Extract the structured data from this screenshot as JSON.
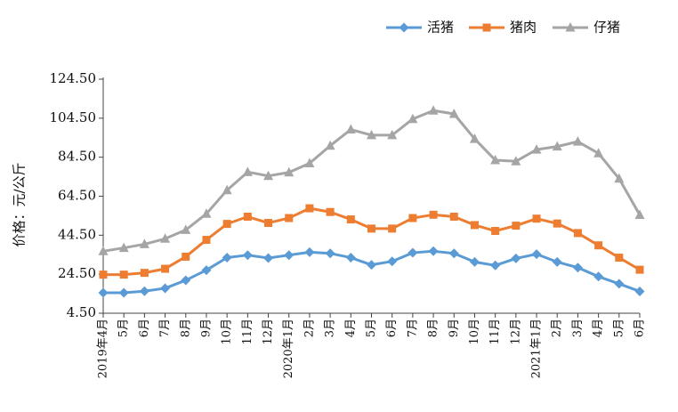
{
  "chart_data": {
    "type": "line",
    "ylabel": "价格：元/公斤",
    "ylim": [
      4.5,
      124.5
    ],
    "yticks": [
      "124.50",
      "104.50",
      "84.50",
      "64.50",
      "44.50",
      "24.50",
      "4.50"
    ],
    "categories": [
      "2019年4月",
      "5月",
      "6月",
      "7月",
      "8月",
      "9月",
      "10月",
      "11月",
      "12月",
      "2020年1月",
      "2月",
      "3月",
      "4月",
      "5月",
      "6月",
      "7月",
      "8月",
      "9月",
      "10月",
      "11月",
      "12月",
      "2021年1月",
      "2月",
      "3月",
      "4月",
      "5月",
      "6月"
    ],
    "series": [
      {
        "name": "活猪",
        "color": "#5B9BD5",
        "marker": "diamond",
        "values": [
          15.0,
          15.0,
          15.8,
          17.3,
          21.4,
          26.6,
          33.0,
          34.3,
          32.8,
          34.3,
          35.8,
          35.2,
          33.0,
          29.3,
          31.1,
          35.5,
          36.3,
          35.2,
          30.8,
          29.0,
          32.6,
          34.8,
          30.8,
          27.9,
          23.3,
          19.6,
          15.7
        ]
      },
      {
        "name": "猪肉",
        "color": "#ED7D31",
        "marker": "square",
        "values": [
          24.3,
          24.3,
          25.2,
          27.3,
          33.5,
          42.1,
          50.3,
          54.0,
          50.8,
          53.3,
          58.3,
          56.4,
          52.6,
          47.9,
          47.9,
          53.3,
          55.0,
          54.0,
          49.7,
          46.7,
          49.4,
          53.0,
          50.5,
          45.6,
          39.3,
          33.0,
          26.8
        ]
      },
      {
        "name": "仔猪",
        "color": "#A5A5A5",
        "marker": "triangle",
        "values": [
          36.3,
          38.0,
          39.9,
          42.7,
          47.2,
          55.5,
          67.6,
          76.9,
          74.9,
          76.7,
          81.4,
          90.4,
          98.7,
          95.8,
          95.8,
          104.1,
          108.4,
          106.7,
          93.9,
          83.0,
          82.4,
          88.4,
          90.0,
          92.5,
          86.5,
          73.5,
          54.9
        ]
      }
    ],
    "legend_position": "top-right",
    "grid": false
  }
}
